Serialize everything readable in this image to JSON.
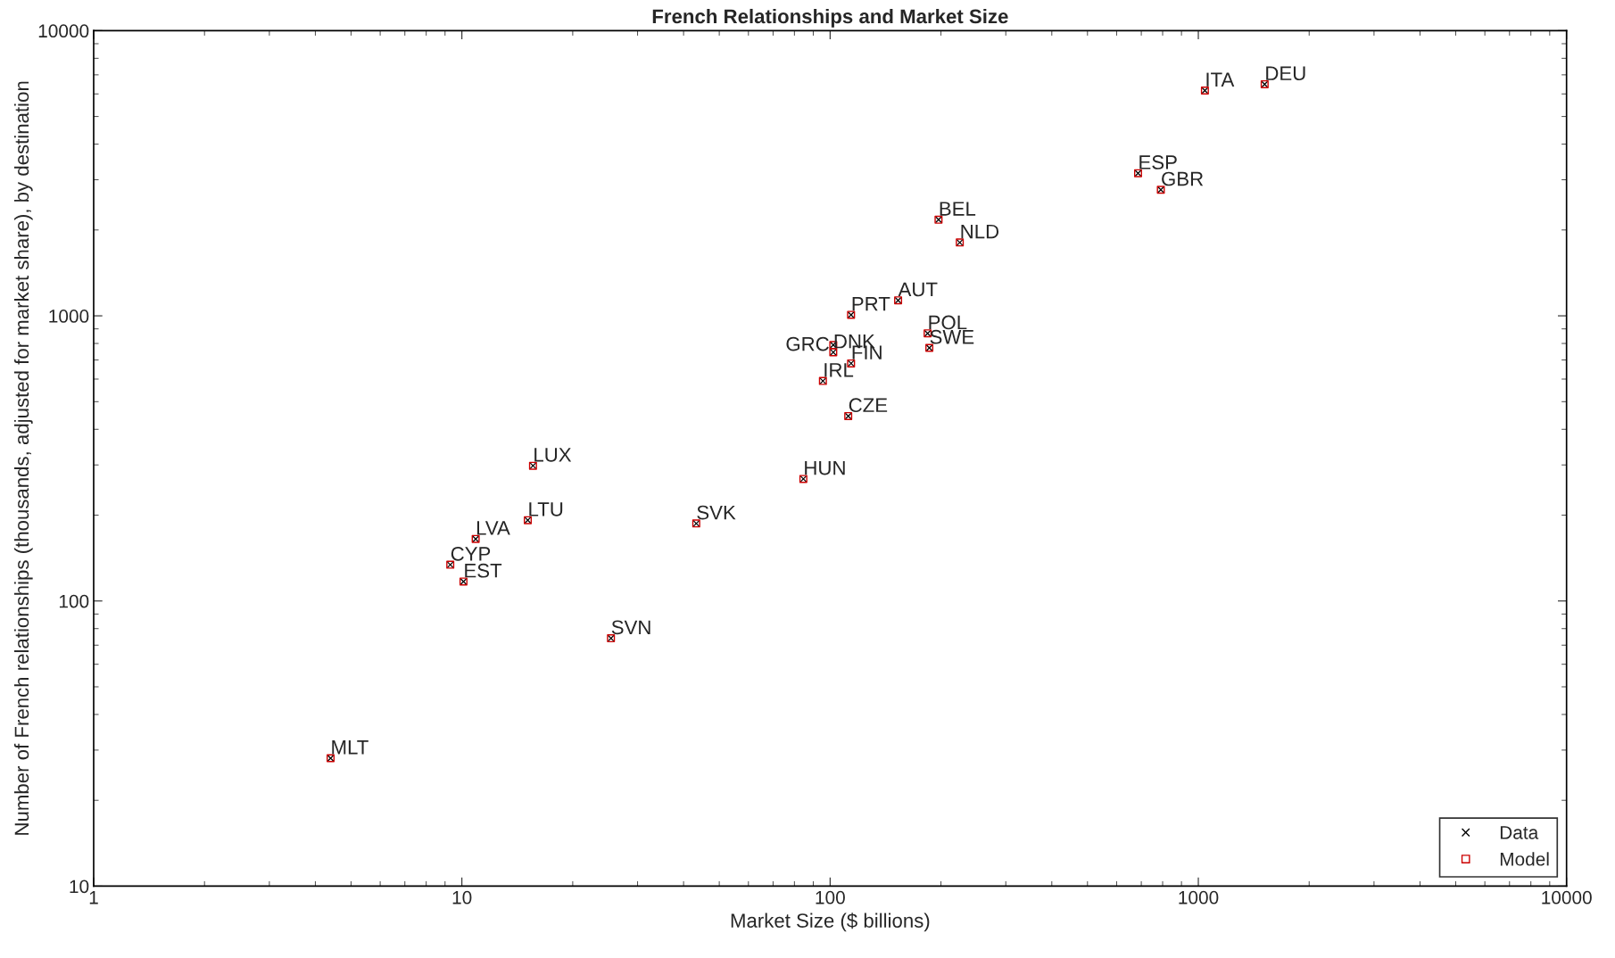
{
  "chart_data": {
    "type": "scatter",
    "title": "French Relationships and Market Size",
    "xlabel": "Market Size ($ billions)",
    "ylabel": "Number of French relationships (thousands, adjusted for market share), by destination",
    "log": "xy",
    "xlim": [
      1,
      10000
    ],
    "xticks": [
      1,
      10,
      100,
      1000,
      10000
    ],
    "ylim": [
      10,
      10000
    ],
    "yticks": [
      10,
      100,
      1000,
      10000
    ],
    "grid": false,
    "legend": "bottom right",
    "series": [
      {
        "name": "Data",
        "marker": "cross",
        "color": "#000000",
        "x": [
          4.4,
          9.3,
          10.1,
          10.9,
          15.1,
          15.6,
          25.4,
          43.3,
          84.6,
          95.6,
          102,
          102,
          114,
          112,
          114,
          153,
          184,
          186,
          197,
          225,
          686,
          791,
          1042,
          1514
        ],
        "values": [
          28.1,
          134,
          117,
          165,
          192,
          298,
          74,
          187,
          268,
          591,
          745,
          790,
          681,
          445,
          1008,
          1133,
          868,
          772,
          2173,
          1808,
          3162,
          2767,
          6166,
          6486
        ]
      },
      {
        "name": "Model",
        "marker": "square",
        "color": "#cc0000",
        "x": [
          4.4,
          9.3,
          10.1,
          10.9,
          15.1,
          15.6,
          25.4,
          43.3,
          84.6,
          95.6,
          102,
          102,
          114,
          112,
          114,
          153,
          184,
          186,
          197,
          225,
          686,
          791,
          1042,
          1514
        ],
        "values": [
          28.1,
          134,
          117,
          165,
          192,
          298,
          74,
          187,
          268,
          591,
          745,
          790,
          681,
          445,
          1008,
          1133,
          868,
          772,
          2173,
          1808,
          3162,
          2767,
          6166,
          6486
        ]
      }
    ],
    "annotations": [
      {
        "text": "MLT",
        "x": 4.4,
        "y": 28.1
      },
      {
        "text": "CYP",
        "x": 9.3,
        "y": 134
      },
      {
        "text": "EST",
        "x": 10.1,
        "y": 117
      },
      {
        "text": "LVA",
        "x": 10.9,
        "y": 165
      },
      {
        "text": "LTU",
        "x": 15.1,
        "y": 192
      },
      {
        "text": "LUX",
        "x": 15.6,
        "y": 298
      },
      {
        "text": "SVN",
        "x": 25.4,
        "y": 74
      },
      {
        "text": "SVK",
        "x": 43.3,
        "y": 187
      },
      {
        "text": "HUN",
        "x": 84.6,
        "y": 268
      },
      {
        "text": "IRL",
        "x": 95.6,
        "y": 591
      },
      {
        "text": "DNK",
        "x": 102,
        "y": 745
      },
      {
        "text": "GRC",
        "x": 102,
        "y": 790
      },
      {
        "text": "FIN",
        "x": 114,
        "y": 681
      },
      {
        "text": "CZE",
        "x": 112,
        "y": 445
      },
      {
        "text": "PRT",
        "x": 114,
        "y": 1008
      },
      {
        "text": "AUT",
        "x": 153,
        "y": 1133
      },
      {
        "text": "POL",
        "x": 184,
        "y": 868
      },
      {
        "text": "SWE",
        "x": 186,
        "y": 772
      },
      {
        "text": "BEL",
        "x": 197,
        "y": 2173
      },
      {
        "text": "NLD",
        "x": 225,
        "y": 1808
      },
      {
        "text": "ESP",
        "x": 686,
        "y": 3162
      },
      {
        "text": "GBR",
        "x": 791,
        "y": 2767
      },
      {
        "text": "ITA",
        "x": 1042,
        "y": 6166
      },
      {
        "text": "DEU",
        "x": 1514,
        "y": 6486
      }
    ]
  }
}
